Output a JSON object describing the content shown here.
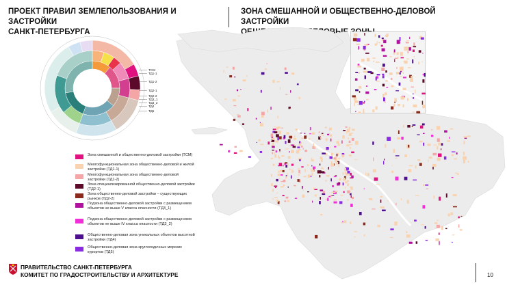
{
  "header": {
    "left_line1": "ПРОЕКТ ПРАВИЛ ЗЕМЛЕПОЛЬЗОВАНИЯ И ЗАСТРОЙКИ",
    "left_line2": "САНКТ-ПЕТЕРБУРГА",
    "right_line1": "ЗОНА СМЕШАННОЙ И ОБЩЕСТВЕННО-ДЕЛОВОЙ ЗАСТРОЙКИ",
    "right_line2": "ОБЩЕСТВЕННО-ДЕЛОВЫЕ ЗОНЫ"
  },
  "sunburst": {
    "callouts": [
      "ТСМ",
      "ТД1-1",
      "ТД1-2",
      "ТД2-1",
      "ТД2-2",
      "ТД3_1",
      "ТД3_2",
      "ТД4",
      "ТД5"
    ],
    "colors": [
      "#e1127f",
      "#f9d3b0",
      "#f4a6a6",
      "#5c0a2a",
      "#8b2a1c",
      "#b0129e",
      "#f02fd8",
      "#4e0f8f",
      "#8a2be2"
    ]
  },
  "legend": {
    "items": [
      {
        "color": "#e1127f",
        "text": "Зона смешанной и общественно-деловой застройки (ТСМ)"
      },
      {
        "color": "#f9d3b0",
        "text": "Многофункциональная зона общественно-деловой и жилой застройки (ТД1-1)"
      },
      {
        "color": "#f4a6a6",
        "text": "Многофункциональная зона общественно-деловой застройки (ТД1-2)"
      },
      {
        "color": "#5c0a2a",
        "text": "Зона специализированной общественно-деловой застройки (ТД2-1)"
      },
      {
        "color": "#8b2a1c",
        "text": "Зона общественно-деловой застройки – существующих рынков (ТД2-2)"
      },
      {
        "color": "#b0129e",
        "text": "Подзона общественно-деловой застройки с размещением объектов не выше V класса опасности (ТД3_1)"
      },
      {
        "color": "#f02fd8",
        "text": "Подзона общественно-деловой застройки с размещением объектов не выше IV класса опасности (ТД3_2)"
      },
      {
        "color": "#4e0f8f",
        "text": "Общественно-деловая зона уникальных объектов высотной застройки (ТД4)"
      },
      {
        "color": "#8a2be2",
        "text": "Общественно-деловая зона круглогодичных морских курортов (ТД5)"
      }
    ]
  },
  "footer": {
    "line1": "ПРАВИТЕЛЬСТВО САНКТ-ПЕТЕРБУРГА",
    "line2": "КОМИТЕТ ПО ГРАДОСТРОИТЕЛЬСТВУ И АРХИТЕКТУРЕ",
    "page_number": "10",
    "emblem_icon": "city-coat-of-arms-icon",
    "emblem_color": "#c8102e"
  }
}
